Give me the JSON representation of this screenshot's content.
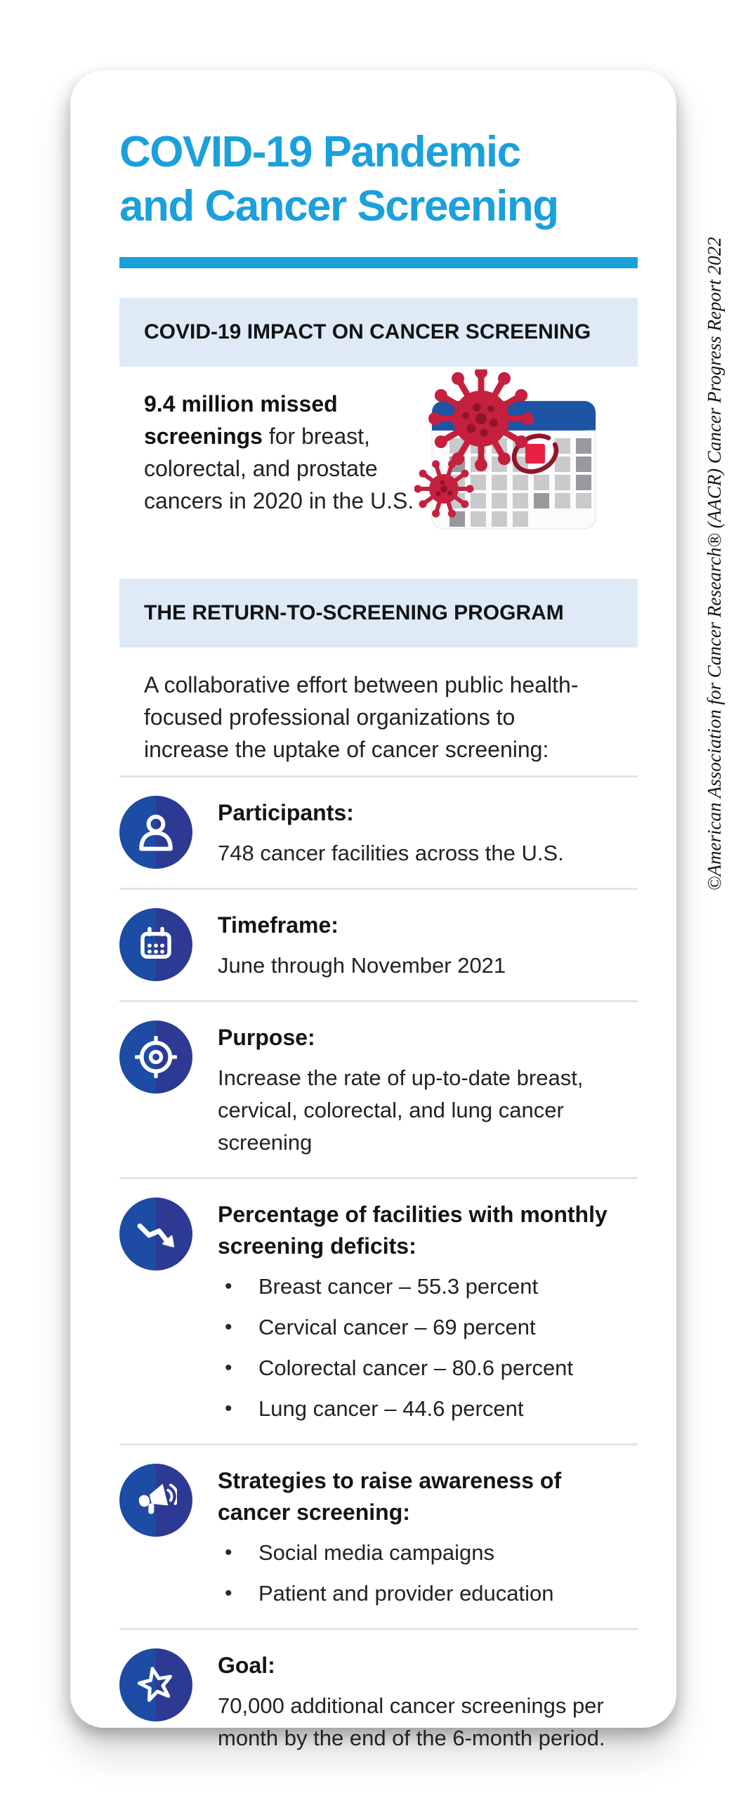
{
  "title_line1": "COVID-19 Pandemic",
  "title_line2": "and Cancer Screening",
  "copyright": "©American Association for Cancer Research® (AACR) Cancer Progress Report 2022",
  "section_impact": {
    "header": "COVID-19 IMPACT ON CANCER SCREENING",
    "stat_bold": "9.4 million missed screenings",
    "stat_rest": " for breast, colorectal, and prostate cancers in 2020 in the U.S.",
    "illustration": "calendar-with-coronavirus"
  },
  "section_program": {
    "header": "THE RETURN-TO-SCREENING PROGRAM",
    "intro": "A collaborative effort between public health-focused professional organizations to increase the uptake of cancer screening:",
    "rows": [
      {
        "icon": "person-icon",
        "label": "Participants:",
        "text": "748 cancer facilities across the U.S."
      },
      {
        "icon": "calendar-icon",
        "label": "Timeframe:",
        "text": "June through November 2021"
      },
      {
        "icon": "target-icon",
        "label": "Purpose:",
        "text": "Increase the rate of up-to-date breast, cervical, colorectal, and lung cancer screening"
      },
      {
        "icon": "trend-down-icon",
        "label": "Percentage of facilities with monthly screening deficits:",
        "bullets": [
          "Breast cancer – 55.3 percent",
          "Cervical cancer – 69 percent",
          "Colorectal cancer – 80.6 percent",
          "Lung cancer – 44.6 percent"
        ]
      },
      {
        "icon": "megaphone-icon",
        "label": "Strategies to raise awareness of cancer screening:",
        "bullets": [
          "Social media campaigns",
          "Patient and provider education"
        ]
      },
      {
        "icon": "star-icon",
        "label": "Goal:",
        "text": "70,000 additional cancer screenings per month by the end of the 6-month period."
      }
    ]
  },
  "colors": {
    "accent_blue": "#1BA0DC",
    "section_bg": "#DEEBF7",
    "icon_blue_left": "#1C4CA3",
    "icon_blue_right": "#2C3A93",
    "calendar_blue": "#1D54A4",
    "virus_red": "#C5203E",
    "virus_dark": "#8F152B",
    "ink": "#1E1E1E",
    "divider": "#E5E5E5"
  }
}
